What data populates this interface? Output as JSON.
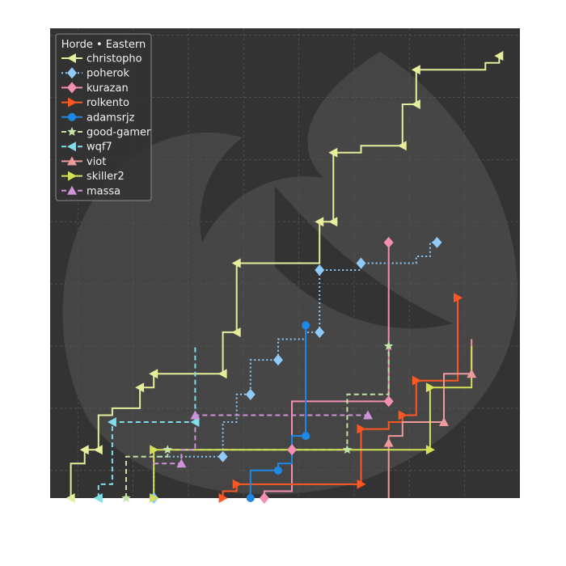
{
  "chart_data": {
    "type": "line",
    "title": "",
    "xlabel": "",
    "ylabel": "",
    "xlim": [
      0,
      34
    ],
    "ylim": [
      0,
      34
    ],
    "grid": true,
    "legend": {
      "title": "Horde • Eastern",
      "placement": "top-left"
    },
    "watermark": "horde-crest",
    "series": [
      {
        "name": "christopho",
        "color": "#e6ee9c",
        "dash": "solid",
        "marker": "tri-left",
        "points": [
          [
            1.5,
            0
          ],
          [
            1.5,
            2.5
          ],
          [
            2.5,
            2.5
          ],
          [
            2.5,
            3.5
          ],
          [
            3.5,
            3.5
          ],
          [
            3.5,
            6
          ],
          [
            4.5,
            6
          ],
          [
            4.5,
            6.5
          ],
          [
            6.5,
            6.5
          ],
          [
            6.5,
            8
          ],
          [
            7.5,
            8
          ],
          [
            7.5,
            9
          ],
          [
            12.5,
            9
          ],
          [
            12.5,
            12
          ],
          [
            13.5,
            12
          ],
          [
            13.5,
            17
          ],
          [
            19.5,
            17
          ],
          [
            19.5,
            20
          ],
          [
            20.5,
            20
          ],
          [
            20.5,
            25
          ],
          [
            22.5,
            25
          ],
          [
            22.5,
            25.5
          ],
          [
            25.5,
            25.5
          ],
          [
            25.5,
            28.5
          ],
          [
            26.5,
            28.5
          ],
          [
            26.5,
            31
          ],
          [
            31.5,
            31
          ],
          [
            31.5,
            31.5
          ],
          [
            32.5,
            31.5
          ],
          [
            32.5,
            32
          ]
        ],
        "markers": [
          [
            1.5,
            0
          ],
          [
            2.5,
            3.5
          ],
          [
            3.5,
            3.5
          ],
          [
            6.5,
            8
          ],
          [
            7.5,
            9
          ],
          [
            12.5,
            9
          ],
          [
            13.5,
            12
          ],
          [
            13.5,
            17
          ],
          [
            19.5,
            20
          ],
          [
            20.5,
            20
          ],
          [
            20.5,
            25
          ],
          [
            25.5,
            25.5
          ],
          [
            26.5,
            28.5
          ],
          [
            26.5,
            31
          ],
          [
            32.5,
            32
          ]
        ]
      },
      {
        "name": "poherok",
        "color": "#90caf9",
        "dash": "dot",
        "marker": "diamond",
        "points": [
          [
            7.5,
            0
          ],
          [
            7.5,
            3
          ],
          [
            12.5,
            3
          ],
          [
            12.5,
            5.5
          ],
          [
            13.5,
            5.5
          ],
          [
            13.5,
            7.5
          ],
          [
            14.5,
            7.5
          ],
          [
            14.5,
            10
          ],
          [
            16.5,
            10
          ],
          [
            16.5,
            11.5
          ],
          [
            18.5,
            11.5
          ],
          [
            18.5,
            12
          ],
          [
            19.5,
            12
          ],
          [
            19.5,
            16.5
          ],
          [
            22.5,
            16.5
          ],
          [
            22.5,
            17
          ],
          [
            26.5,
            17
          ],
          [
            26.5,
            17.5
          ],
          [
            27.5,
            17.5
          ],
          [
            27.5,
            18.5
          ],
          [
            28,
            18.5
          ]
        ],
        "markers": [
          [
            7.5,
            0
          ],
          [
            12.5,
            3
          ],
          [
            14.5,
            7.5
          ],
          [
            16.5,
            10
          ],
          [
            19.5,
            12
          ],
          [
            19.5,
            16.5
          ],
          [
            22.5,
            17
          ],
          [
            28,
            18.5
          ]
        ]
      },
      {
        "name": "kurazan",
        "color": "#f48fb1",
        "dash": "solid",
        "marker": "diamond",
        "points": [
          [
            15.5,
            0
          ],
          [
            15.5,
            0.5
          ],
          [
            17.5,
            0.5
          ],
          [
            17.5,
            7
          ],
          [
            24.5,
            7
          ],
          [
            24.5,
            18.5
          ]
        ],
        "markers": [
          [
            15.5,
            0
          ],
          [
            17.5,
            3.5
          ],
          [
            24.5,
            7
          ],
          [
            24.5,
            18.5
          ]
        ]
      },
      {
        "name": "rolkento",
        "color": "#ff5722",
        "dash": "solid",
        "marker": "tri-right",
        "points": [
          [
            12.5,
            0
          ],
          [
            12.5,
            0.5
          ],
          [
            13.5,
            0.5
          ],
          [
            13.5,
            1
          ],
          [
            22.5,
            1
          ],
          [
            22.5,
            5
          ],
          [
            24.5,
            5
          ],
          [
            24.5,
            5.5
          ],
          [
            25.5,
            5.5
          ],
          [
            25.5,
            6
          ],
          [
            26.5,
            6
          ],
          [
            26.5,
            8.5
          ],
          [
            29.5,
            8.5
          ],
          [
            29.5,
            14.5
          ]
        ],
        "markers": [
          [
            12.5,
            0
          ],
          [
            13.5,
            1
          ],
          [
            22.5,
            1
          ],
          [
            22.5,
            5
          ],
          [
            25.5,
            6
          ],
          [
            26.5,
            8.5
          ],
          [
            29.5,
            14.5
          ]
        ]
      },
      {
        "name": "adamsrjz",
        "color": "#1e88e5",
        "dash": "solid",
        "marker": "circle",
        "points": [
          [
            14.5,
            0
          ],
          [
            14.5,
            2
          ],
          [
            16.5,
            2
          ],
          [
            16.5,
            2.5
          ],
          [
            17.5,
            2.5
          ],
          [
            17.5,
            4.5
          ],
          [
            18.5,
            4.5
          ],
          [
            18.5,
            12.5
          ]
        ],
        "markers": [
          [
            14.5,
            0
          ],
          [
            16.5,
            2
          ],
          [
            18.5,
            4.5
          ],
          [
            18.5,
            12.5
          ]
        ]
      },
      {
        "name": "good-gamer",
        "color": "#c5e1a5",
        "dash": "dash",
        "marker": "star",
        "points": [
          [
            5.5,
            0
          ],
          [
            5.5,
            3
          ],
          [
            8.5,
            3
          ],
          [
            8.5,
            3.5
          ],
          [
            21.5,
            3.5
          ],
          [
            21.5,
            7.5
          ],
          [
            24.5,
            7.5
          ],
          [
            24.5,
            11
          ]
        ],
        "markers": [
          [
            5.5,
            0
          ],
          [
            8.5,
            3.5
          ],
          [
            21.5,
            3.5
          ],
          [
            24.5,
            11
          ]
        ]
      },
      {
        "name": "wqf7",
        "color": "#80deea",
        "dash": "dash",
        "marker": "tri-left",
        "points": [
          [
            3.5,
            0
          ],
          [
            3.5,
            1
          ],
          [
            4.5,
            1
          ],
          [
            4.5,
            5.5
          ],
          [
            10.5,
            5.5
          ],
          [
            10.5,
            11
          ]
        ],
        "markers": [
          [
            3.5,
            0
          ],
          [
            4.5,
            5.5
          ],
          [
            10.5,
            5.5
          ]
        ]
      },
      {
        "name": "viot",
        "color": "#ef9a9a",
        "dash": "solid",
        "marker": "triangle",
        "points": [
          [
            24.5,
            0
          ],
          [
            24.5,
            4.5
          ],
          [
            25.5,
            4.5
          ],
          [
            25.5,
            5.5
          ],
          [
            28.5,
            5.5
          ],
          [
            28.5,
            9
          ],
          [
            30.5,
            9
          ],
          [
            30.5,
            11.5
          ]
        ],
        "markers": [
          [
            24.5,
            4
          ],
          [
            28.5,
            5.5
          ],
          [
            30.5,
            9
          ]
        ]
      },
      {
        "name": "skiller2",
        "color": "#d4e157",
        "dash": "solid",
        "marker": "tri-right",
        "points": [
          [
            7.5,
            0
          ],
          [
            7.5,
            3.5
          ],
          [
            27.5,
            3.5
          ],
          [
            27.5,
            8
          ],
          [
            30.5,
            8
          ],
          [
            30.5,
            11
          ]
        ],
        "markers": [
          [
            7.5,
            0
          ],
          [
            7.5,
            3.5
          ],
          [
            27.5,
            3.5
          ],
          [
            27.5,
            8
          ]
        ]
      },
      {
        "name": "massa",
        "color": "#ce93d8",
        "dash": "dash",
        "marker": "triangle",
        "points": [
          [
            7.5,
            2.5
          ],
          [
            9.5,
            2.5
          ],
          [
            9.5,
            3.5
          ],
          [
            10.5,
            3.5
          ],
          [
            10.5,
            6
          ],
          [
            23,
            6
          ]
        ],
        "markers": [
          [
            9.5,
            2.5
          ],
          [
            10.5,
            6
          ],
          [
            23,
            6
          ]
        ]
      }
    ]
  }
}
